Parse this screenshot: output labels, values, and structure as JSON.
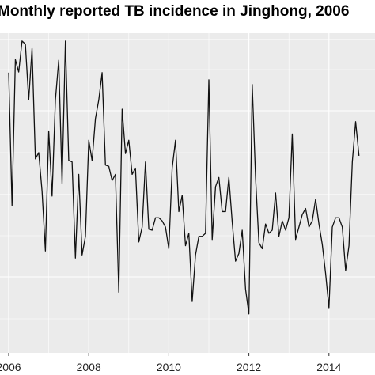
{
  "chart_data": {
    "type": "line",
    "title": "Monthly reported TB incidence in Jinghong, 2006",
    "xlabel": "",
    "ylabel": "",
    "x_ticks": [
      "2006",
      "2008",
      "2010",
      "2012",
      "2014"
    ],
    "x_start_year": 2006,
    "months_per_year": 12,
    "ylim": [
      0,
      100
    ],
    "grid": true,
    "background": "#ebebeb",
    "gridline_color": "#ffffff",
    "line_color": "#111111",
    "series": [
      {
        "values": [
          87.8,
          45.0,
          92.0,
          88.0,
          98.0,
          97.0,
          79.0,
          95.6,
          60.0,
          62.0,
          49.5,
          30.3,
          69.0,
          48.0,
          79.0,
          91.8,
          52.0,
          98.0,
          59.5,
          59.0,
          28.0,
          55.0,
          29.0,
          35.0,
          66.0,
          59.4,
          73.0,
          79.0,
          87.8,
          58.0,
          57.6,
          53.0,
          55.0,
          17.0,
          76.0,
          61.7,
          66.0,
          55.0,
          57.0,
          33.2,
          38.0,
          59.0,
          37.3,
          37.0,
          41.0,
          41.0,
          40.0,
          38.0,
          31.0,
          57.0,
          66.0,
          43.0,
          48.2,
          32.0,
          36.0,
          14.0,
          29.0,
          35.0,
          35.0,
          36.0,
          85.5,
          34.0,
          51.0,
          54.0,
          43.0,
          43.0,
          54.0,
          39.6,
          27.0,
          29.5,
          37.0,
          18.0,
          10.0,
          84.0,
          54.0,
          33.0,
          31.0,
          39.0,
          36.0,
          37.0,
          49.0,
          35.0,
          40.0,
          37.0,
          41.0,
          68.0,
          34.0,
          38.0,
          42.0,
          44.0,
          38.0,
          40.0,
          47.0,
          39.0,
          32.4,
          23.0,
          12.0,
          38.0,
          41.0,
          41.0,
          38.0,
          24.0,
          32.0,
          59.0,
          72.0,
          61.0
        ]
      }
    ]
  }
}
